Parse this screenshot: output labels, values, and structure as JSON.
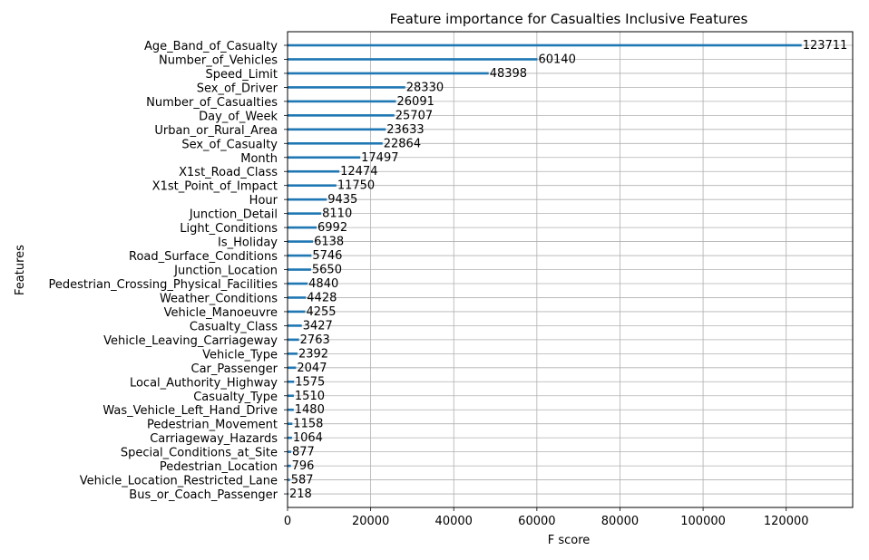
{
  "chart_data": {
    "type": "bar",
    "orientation": "horizontal",
    "title": "Feature importance for Casualties Inclusive Features",
    "xlabel": "F score",
    "ylabel": "Features",
    "xlim": [
      0,
      136000
    ],
    "xticks": [
      0,
      20000,
      40000,
      60000,
      80000,
      100000,
      120000
    ],
    "xtick_labels": [
      "0",
      "20000",
      "40000",
      "60000",
      "80000",
      "100000",
      "120000"
    ],
    "grid": true,
    "bar_color": "#1f77b4",
    "categories": [
      "Age_Band_of_Casualty",
      "Number_of_Vehicles",
      "Speed_Limit",
      "Sex_of_Driver",
      "Number_of_Casualties",
      "Day_of_Week",
      "Urban_or_Rural_Area",
      "Sex_of_Casualty",
      "Month",
      "X1st_Road_Class",
      "X1st_Point_of_Impact",
      "Hour",
      "Junction_Detail",
      "Light_Conditions",
      "Is_Holiday",
      "Road_Surface_Conditions",
      "Junction_Location",
      "Pedestrian_Crossing_Physical_Facilities",
      "Weather_Conditions",
      "Vehicle_Manoeuvre",
      "Casualty_Class",
      "Vehicle_Leaving_Carriageway",
      "Vehicle_Type",
      "Car_Passenger",
      "Local_Authority_Highway",
      "Casualty_Type",
      "Was_Vehicle_Left_Hand_Drive",
      "Pedestrian_Movement",
      "Carriageway_Hazards",
      "Special_Conditions_at_Site",
      "Pedestrian_Location",
      "Vehicle_Location_Restricted_Lane",
      "Bus_or_Coach_Passenger"
    ],
    "values": [
      123711,
      60140,
      48398,
      28330,
      26091,
      25707,
      23633,
      22864,
      17497,
      12474,
      11750,
      9435,
      8110,
      6992,
      6138,
      5746,
      5650,
      4840,
      4428,
      4255,
      3427,
      2763,
      2392,
      2047,
      1575,
      1510,
      1480,
      1158,
      1064,
      877,
      796,
      587,
      218
    ],
    "value_labels": [
      "123711",
      "60140",
      "48398",
      "28330",
      "26091",
      "25707",
      "23633",
      "22864",
      "17497",
      "12474",
      "11750",
      "9435",
      "8110",
      "6992",
      "6138",
      "5746",
      "5650",
      "4840",
      "4428",
      "4255",
      "3427",
      "2763",
      "2392",
      "2047",
      "1575",
      "1510",
      "1480",
      "1158",
      "1064",
      "877",
      "796",
      "587",
      "218"
    ]
  }
}
